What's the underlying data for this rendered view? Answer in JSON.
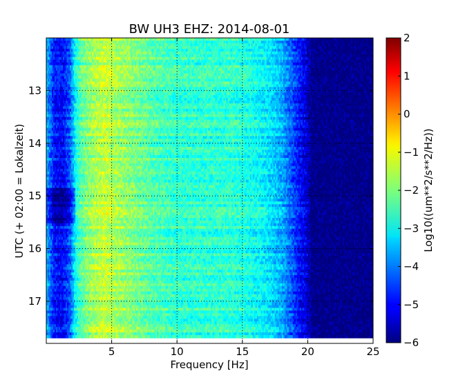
{
  "chart_data": {
    "type": "heatmap",
    "title": "BW UH3 EHZ: 2014-08-01",
    "xlabel": "Frequency [Hz]",
    "ylabel": "UTC (+ 02:00 = Lokalzeit)",
    "colorbar_label": "Log10((um**2/s**2/Hz))",
    "colormap": "jet",
    "xlim": [
      0,
      25
    ],
    "ylim_hours": [
      12.0,
      17.8
    ],
    "y_inverted": true,
    "clim": [
      -6,
      2
    ],
    "grid": true,
    "x_ticks": [
      {
        "value": 5,
        "label": "5"
      },
      {
        "value": 10,
        "label": "10"
      },
      {
        "value": 15,
        "label": "15"
      },
      {
        "value": 20,
        "label": "20"
      },
      {
        "value": 25,
        "label": "25"
      }
    ],
    "y_ticks": [
      {
        "value": 13,
        "label": "13"
      },
      {
        "value": 14,
        "label": "14"
      },
      {
        "value": 15,
        "label": "15"
      },
      {
        "value": 16,
        "label": "16"
      },
      {
        "value": 17,
        "label": "17"
      }
    ],
    "colorbar_ticks": [
      {
        "value": 2,
        "label": "2"
      },
      {
        "value": 1,
        "label": "1"
      },
      {
        "value": 0,
        "label": "0"
      },
      {
        "value": -1,
        "label": "−1"
      },
      {
        "value": -2,
        "label": "−2"
      },
      {
        "value": -3,
        "label": "−3"
      },
      {
        "value": -4,
        "label": "−4"
      },
      {
        "value": -5,
        "label": "−5"
      },
      {
        "value": -6,
        "label": "−6"
      }
    ],
    "spectrum_profile": {
      "frequency_hz": [
        0,
        0.6,
        1.2,
        1.8,
        2.2,
        2.6,
        3.0,
        3.8,
        4.5,
        5.0,
        6.0,
        8.0,
        10.0,
        12.0,
        14.0,
        15.5,
        16.5,
        17.2,
        18.0,
        18.8,
        19.5,
        20.0,
        20.3,
        21.0,
        25.0
      ],
      "log10_power": [
        -3.5,
        -4.8,
        -5.0,
        -4.3,
        -3.0,
        -2.3,
        -2.0,
        -1.6,
        -1.4,
        -1.6,
        -1.8,
        -2.3,
        -2.6,
        -2.6,
        -2.6,
        -2.8,
        -3.0,
        -3.2,
        -3.6,
        -4.3,
        -5.0,
        -5.3,
        -6.0,
        -6.0,
        -6.0
      ]
    },
    "quiet_period_hours": [
      14.85,
      15.5
    ]
  }
}
